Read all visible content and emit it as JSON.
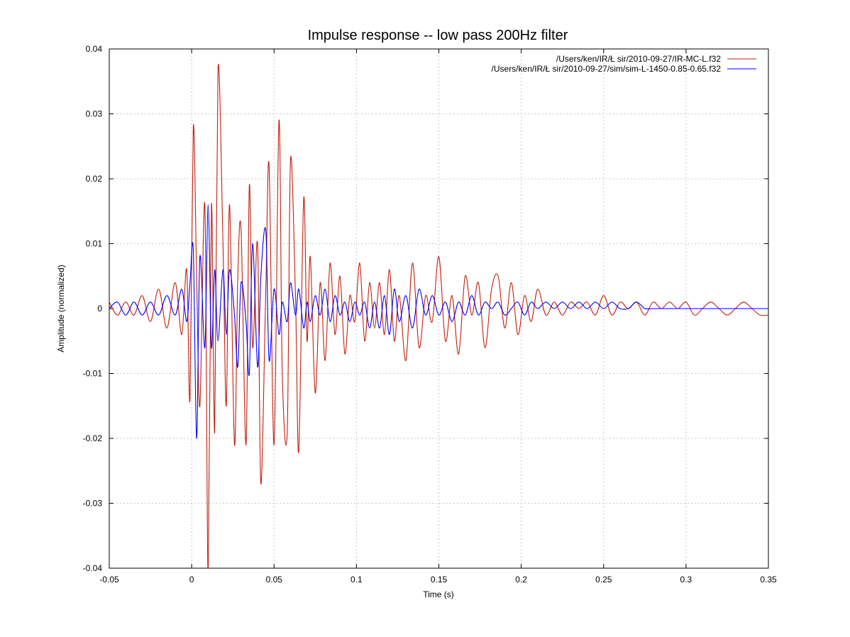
{
  "chart_data": {
    "type": "line",
    "title": "Impulse response -- low pass 200Hz filter",
    "xlabel": "Time (s)",
    "ylabel": "Amplitude (normalized)",
    "xlim": [
      -0.05,
      0.35
    ],
    "ylim": [
      -0.04,
      0.04
    ],
    "x_ticks": [
      -0.05,
      0,
      0.05,
      0.1,
      0.15,
      0.2,
      0.25,
      0.3,
      0.35
    ],
    "x_tick_labels": [
      "-0.05",
      "0",
      "0.05",
      "0.1",
      "0.15",
      "0.2",
      "0.25",
      "0.3",
      "0.35"
    ],
    "y_ticks": [
      -0.04,
      -0.03,
      -0.02,
      -0.01,
      0,
      0.01,
      0.02,
      0.03,
      0.04
    ],
    "y_tick_labels": [
      "-0.04",
      "-0.03",
      "-0.02",
      "-0.01",
      "0",
      "0.01",
      "0.02",
      "0.03",
      "0.04"
    ],
    "grid": true,
    "legend_position": "top-right",
    "series": [
      {
        "name": "/Users/ken/IR/Ł     sir/2010-09-27/IR-MC-L.f32",
        "color": "#c1200e",
        "x": [
          -0.05,
          -0.045,
          -0.04,
          -0.035,
          -0.03,
          -0.025,
          -0.02,
          -0.015,
          -0.01,
          -0.006,
          -0.003,
          -0.001,
          0.001,
          0.003,
          0.005,
          0.008,
          0.01,
          0.012,
          0.014,
          0.016,
          0.019,
          0.021,
          0.023,
          0.026,
          0.028,
          0.03,
          0.033,
          0.035,
          0.037,
          0.04,
          0.042,
          0.045,
          0.047,
          0.05,
          0.053,
          0.055,
          0.058,
          0.06,
          0.063,
          0.065,
          0.068,
          0.07,
          0.072,
          0.075,
          0.078,
          0.081,
          0.084,
          0.087,
          0.09,
          0.093,
          0.096,
          0.099,
          0.102,
          0.105,
          0.108,
          0.111,
          0.114,
          0.117,
          0.12,
          0.123,
          0.126,
          0.13,
          0.134,
          0.138,
          0.142,
          0.146,
          0.15,
          0.154,
          0.158,
          0.162,
          0.166,
          0.17,
          0.174,
          0.178,
          0.182,
          0.186,
          0.19,
          0.194,
          0.198,
          0.202,
          0.206,
          0.21,
          0.215,
          0.22,
          0.225,
          0.23,
          0.235,
          0.24,
          0.245,
          0.25,
          0.255,
          0.26,
          0.265,
          0.27,
          0.275,
          0.28,
          0.285,
          0.29,
          0.295,
          0.3,
          0.305,
          0.31,
          0.315,
          0.32,
          0.325,
          0.33,
          0.335,
          0.34,
          0.345,
          0.35
        ],
        "y": [
          0.001,
          -0.001,
          0.001,
          -0.001,
          0.002,
          -0.002,
          0.003,
          -0.003,
          0.004,
          -0.004,
          0.006,
          -0.014,
          0.028,
          0.005,
          -0.015,
          0.016,
          -0.041,
          0.016,
          -0.019,
          0.037,
          0.01,
          -0.015,
          0.016,
          -0.021,
          0.005,
          0.012,
          -0.021,
          0.019,
          -0.006,
          0.01,
          -0.027,
          0.003,
          0.022,
          -0.021,
          0.029,
          -0.01,
          -0.019,
          0.023,
          0.002,
          -0.022,
          0.017,
          -0.005,
          0.008,
          -0.013,
          0.004,
          -0.008,
          0.007,
          -0.004,
          0.005,
          -0.007,
          0.002,
          -0.002,
          0.007,
          -0.005,
          0.004,
          -0.003,
          0.004,
          -0.004,
          0.006,
          -0.005,
          0.002,
          -0.008,
          0.007,
          -0.006,
          0.002,
          -0.002,
          0.008,
          -0.005,
          0.002,
          -0.007,
          0.005,
          -0.001,
          0.004,
          -0.006,
          0.003,
          0.005,
          -0.003,
          0.004,
          -0.004,
          0.002,
          -0.002,
          0.003,
          -0.001,
          0.001,
          -0.001,
          0.001,
          0,
          0.001,
          -0.001,
          0.002,
          -0.001,
          0.001,
          0,
          0.001,
          -0.001,
          0.001,
          0,
          0.001,
          0,
          0.001,
          -0.001,
          0,
          0.001,
          0,
          -0.001,
          0,
          0.001,
          0,
          -0.001,
          -0.001
        ]
      },
      {
        "name": "/Users/ken/IR/Ł     sir/2010-09-27/sim/sim-L-1450-0.85-0.65.f32",
        "color": "#0000ff",
        "x": [
          -0.05,
          -0.045,
          -0.04,
          -0.035,
          -0.03,
          -0.025,
          -0.02,
          -0.015,
          -0.01,
          -0.006,
          -0.003,
          -0.001,
          0.001,
          0.003,
          0.005,
          0.008,
          0.01,
          0.012,
          0.014,
          0.016,
          0.019,
          0.021,
          0.023,
          0.026,
          0.028,
          0.03,
          0.033,
          0.035,
          0.037,
          0.04,
          0.042,
          0.045,
          0.047,
          0.05,
          0.053,
          0.055,
          0.058,
          0.06,
          0.063,
          0.065,
          0.068,
          0.07,
          0.072,
          0.075,
          0.078,
          0.081,
          0.084,
          0.087,
          0.09,
          0.093,
          0.096,
          0.099,
          0.102,
          0.105,
          0.108,
          0.111,
          0.114,
          0.117,
          0.12,
          0.123,
          0.126,
          0.13,
          0.134,
          0.138,
          0.142,
          0.146,
          0.15,
          0.154,
          0.158,
          0.162,
          0.166,
          0.17,
          0.174,
          0.178,
          0.182,
          0.186,
          0.19,
          0.194,
          0.198,
          0.202,
          0.206,
          0.21,
          0.215,
          0.22,
          0.225,
          0.23,
          0.235,
          0.24,
          0.245,
          0.25,
          0.255,
          0.26,
          0.265,
          0.27,
          0.275,
          0.28,
          0.285,
          0.29,
          0.295,
          0.3,
          0.305,
          0.31,
          0.315,
          0.32,
          0.325,
          0.33,
          0.335,
          0.34,
          0.345,
          0.35
        ],
        "y": [
          0,
          0.001,
          -0.001,
          0.001,
          -0.001,
          0.001,
          -0.001,
          0.002,
          -0.001,
          0.003,
          -0.002,
          0.004,
          0.009,
          -0.02,
          0.008,
          -0.006,
          0.016,
          -0.006,
          0.006,
          -0.005,
          0.006,
          -0.004,
          0.006,
          -0.001,
          -0.009,
          0.004,
          -0.002,
          -0.01,
          0.01,
          -0.009,
          0.005,
          0.012,
          -0.008,
          0.003,
          -0.004,
          0.001,
          -0.002,
          0.004,
          -0.001,
          0.003,
          -0.003,
          0.001,
          -0.002,
          0.002,
          -0.001,
          0.003,
          -0.002,
          0.002,
          -0.001,
          0.001,
          -0.002,
          0.001,
          -0.001,
          0.001,
          -0.003,
          0.001,
          -0.003,
          0.002,
          -0.004,
          0.003,
          -0.002,
          0.002,
          -0.003,
          0.003,
          -0.001,
          0.002,
          -0.001,
          0.001,
          -0.002,
          0.001,
          -0.001,
          0.002,
          -0.001,
          0.001,
          0,
          0.001,
          -0.001,
          0,
          0.001,
          -0.001,
          0.001,
          0,
          0.001,
          0,
          0.001,
          0,
          0.001,
          0,
          0.001,
          0,
          0.001,
          0,
          0,
          0.001,
          0,
          0,
          0,
          0,
          0,
          0,
          0,
          0,
          0,
          0,
          0,
          0,
          0,
          0,
          0,
          0
        ]
      }
    ]
  }
}
